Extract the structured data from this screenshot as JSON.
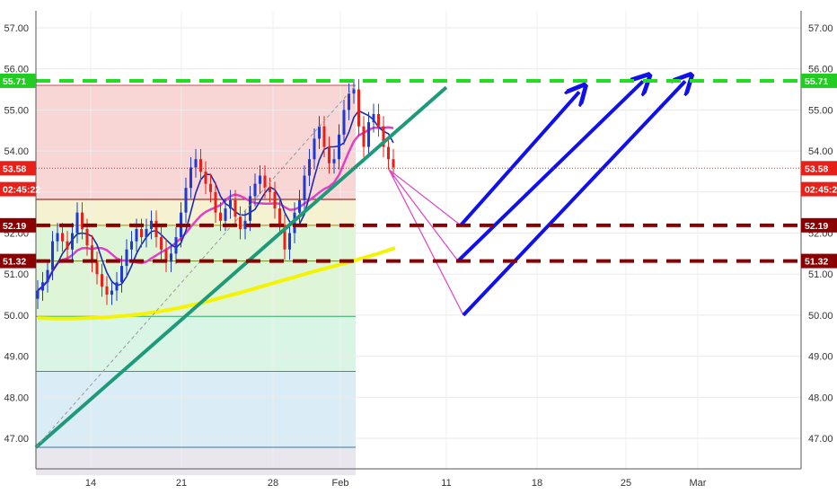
{
  "chart_data": {
    "type": "candlestick",
    "title": "",
    "xlabel": "",
    "ylabel": "",
    "ylim": [
      46.3,
      57.6
    ],
    "y_ticks": [
      "47.00",
      "48.00",
      "49.00",
      "50.00",
      "51.00",
      "52.00",
      "53.00",
      "54.00",
      "55.00",
      "56.00",
      "57.00"
    ],
    "x_ticks": [
      "14",
      "21",
      "28",
      "Feb",
      "11",
      "18",
      "25",
      "Mar"
    ],
    "grid": true,
    "price_tags": [
      {
        "label": "55.71",
        "value": 55.71,
        "color": "#22cc22"
      },
      {
        "label": "53.58",
        "value": 53.58,
        "color": "#e8201a"
      },
      {
        "label": "02:45:22",
        "value": 53.07,
        "color": "#e8201a"
      },
      {
        "label": "52.19",
        "value": 52.19,
        "color": "#8b0000"
      },
      {
        "label": "51.32",
        "value": 51.32,
        "color": "#8b0000"
      }
    ],
    "horizontal_levels": [
      {
        "value": 55.71,
        "style": "dashed",
        "color": "#22dd22"
      },
      {
        "value": 52.19,
        "style": "dashed",
        "color": "#8b0000"
      },
      {
        "value": 51.32,
        "style": "dashed",
        "color": "#8b0000"
      },
      {
        "value": 53.58,
        "style": "dotted",
        "color": "#e8201a"
      }
    ],
    "fib_levels": [
      55.6,
      52.82,
      52.19,
      51.32,
      49.97,
      48.63,
      46.78
    ],
    "series": [
      {
        "values": [
          50.6,
          50.8,
          51.1,
          51.8,
          52.0,
          51.8,
          51.6,
          52.0,
          52.5,
          52.1,
          51.7,
          51.3,
          51.0,
          50.7,
          50.5,
          50.6,
          50.8,
          51.2,
          51.6,
          51.8,
          52.1,
          51.9,
          52.1,
          52.3,
          51.9,
          51.6,
          51.3,
          51.5,
          51.9,
          52.5,
          53.1,
          53.6,
          53.8,
          53.5,
          53.2,
          53.0,
          52.5,
          52.3,
          52.6,
          52.8,
          52.4,
          52.1,
          52.3,
          52.9,
          53.2,
          53.4,
          53.1,
          53.0,
          52.6,
          52.2,
          51.6,
          52.0,
          52.5,
          52.8,
          53.4,
          53.8,
          54.3,
          54.6,
          54.1,
          53.7,
          53.8,
          54.4,
          55.0,
          55.4,
          55.5,
          54.6,
          54.1,
          54.7,
          54.9,
          54.6,
          54.1,
          53.8,
          53.6
        ]
      }
    ]
  }
}
